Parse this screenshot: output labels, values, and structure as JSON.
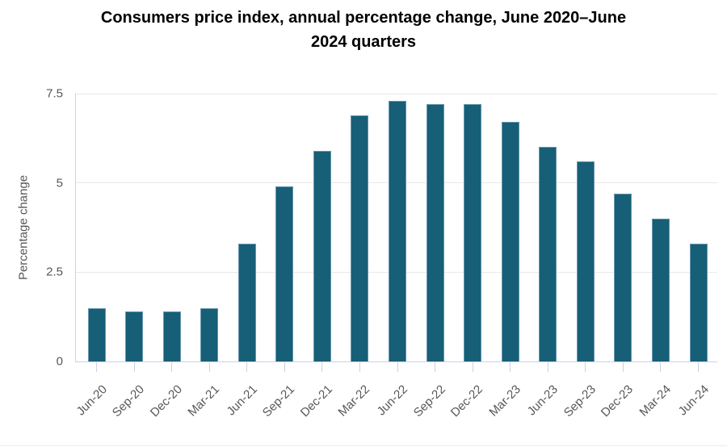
{
  "header": {
    "line1": "Consumers price index, annual percentage change, June 2020–June",
    "line2": "2024 quarters"
  },
  "chart_data": {
    "type": "bar",
    "title": "Consumers price index, annual percentage change, June 2020–June 2024 quarters",
    "xlabel": "",
    "ylabel": "Percentage change",
    "categories": [
      "Jun-20",
      "Sep-20",
      "Dec-20",
      "Mar-21",
      "Jun-21",
      "Sep-21",
      "Dec-21",
      "Mar-22",
      "Jun-22",
      "Sep-22",
      "Dec-22",
      "Mar-23",
      "Jun-23",
      "Sep-23",
      "Dec-23",
      "Mar-24",
      "Jun-24"
    ],
    "values": [
      1.5,
      1.4,
      1.4,
      1.5,
      3.3,
      4.9,
      5.9,
      6.9,
      7.3,
      7.2,
      7.2,
      6.7,
      6.0,
      5.6,
      4.7,
      4.0,
      3.3
    ],
    "ylim": [
      0,
      7.5
    ],
    "yticks": [
      0,
      2.5,
      5,
      7.5
    ],
    "ytick_labels": [
      "0",
      "2.5",
      "5",
      "7.5"
    ],
    "grid": "horizontal",
    "legend": "none",
    "colors": {
      "bar": "#175e77",
      "grid": "#e8e8e8",
      "axis": "#c8d2ea",
      "tick_label": "#57585a",
      "title": "#000000"
    }
  }
}
